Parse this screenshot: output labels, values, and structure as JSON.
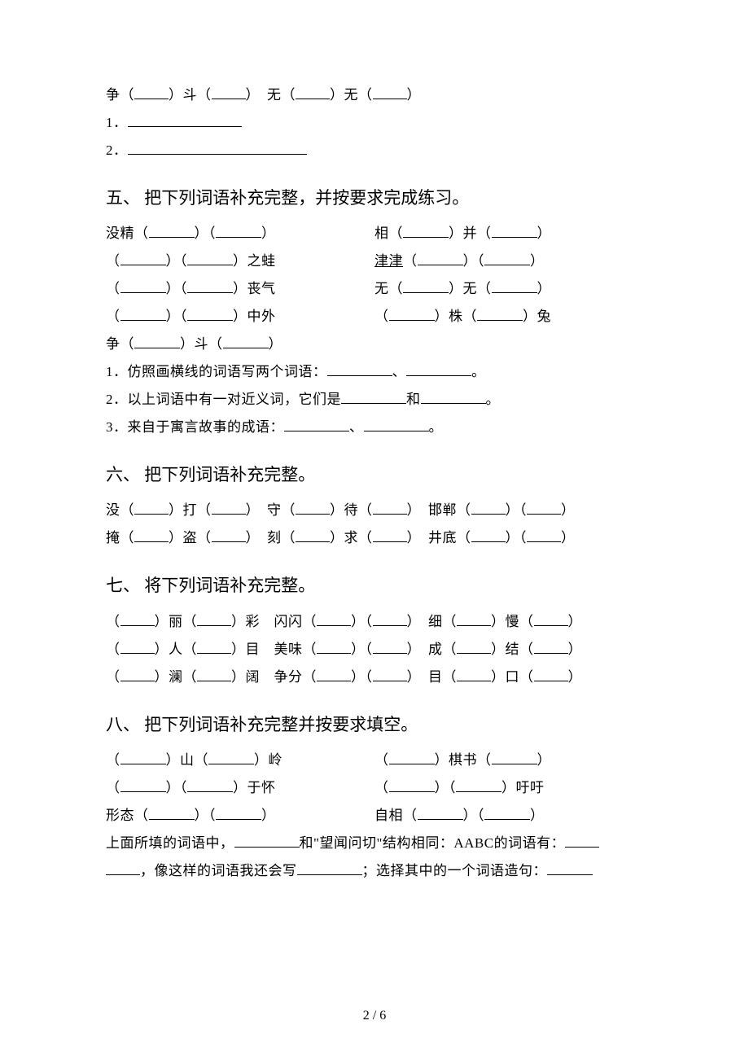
{
  "top_block": {
    "line1_a": "争（",
    "line1_b": "）斗（",
    "line1_c": "）",
    "line1_sep": "　",
    "line1_d": "无（",
    "line1_e": "）无（",
    "line1_f": "）",
    "l1": "1．",
    "l2": "2．"
  },
  "s5": {
    "title": "五、 把下列词语补充完整，并按要求完成练习。",
    "r1a": "没精（",
    "r1b": "）（",
    "r1c": "）",
    "r1d": "相（",
    "r1e": "）并（",
    "r1f": "）",
    "r2a": "（",
    "r2b": "）（",
    "r2c": "）之蛙",
    "r2d_u": "津津",
    "r2d2": "（",
    "r2e": "）（",
    "r2f": "）",
    "r3a": "（",
    "r3b": "）（",
    "r3c": "）丧气",
    "r3d": "无（",
    "r3e": "）无（",
    "r3f": "）",
    "r4a": "（",
    "r4b": "）（",
    "r4c": "）中外",
    "r4d": "（",
    "r4e": "）株（",
    "r4f": "）兔",
    "r5a": "争（",
    "r5b": "）斗（",
    "r5c": "）",
    "q1a": "1．仿照画横线的词语写两个词语：",
    "q1b": "、",
    "q1c": "。",
    "q2a": "2．以上词语中有一对近义词，它们是",
    "q2b": "和",
    "q2c": "。",
    "q3a": "3．来自于寓言故事的成语：",
    "q3b": "、",
    "q3c": "。"
  },
  "s6": {
    "title": "六、 把下列词语补充完整。",
    "l1a": "没（",
    "l1b": "）打（",
    "l1c": "）　守（",
    "l1d": "）待（",
    "l1e": "）　邯郸（",
    "l1f": "）（",
    "l1g": "）",
    "l2a": "掩（",
    "l2b": "）盗（",
    "l2c": "）　刻（",
    "l2d": "）求（",
    "l2e": "）　井底（",
    "l2f": "）（",
    "l2g": "）"
  },
  "s7": {
    "title": "七、 将下列词语补充完整。",
    "l1a": "（",
    "l1b": "）丽（",
    "l1c": "）彩　闪闪（",
    "l1d": "）（",
    "l1e": "）　细（",
    "l1f": "）慢（",
    "l1g": "）",
    "l2a": "（",
    "l2b": "）人（",
    "l2c": "）目　美味（",
    "l2d": "）（",
    "l2e": "）　成（",
    "l2f": "）结（",
    "l2g": "）",
    "l3a": "（",
    "l3b": "）澜（",
    "l3c": "）阔　争分（",
    "l3d": "）（",
    "l3e": "）　目（",
    "l3f": "）口（",
    "l3g": "）"
  },
  "s8": {
    "title": "八、 把下列词语补充完整并按要求填空。",
    "r1a": "（",
    "r1b": "）山（",
    "r1c": "）岭",
    "r1d": "（",
    "r1e": "）棋书（",
    "r1f": "）",
    "r2a": "（",
    "r2b": "）（",
    "r2c": "）于怀",
    "r2d": "（",
    "r2e": "）（",
    "r2f": "）吁吁",
    "r3a": "形态（",
    "r3b": "）（",
    "r3c": "）",
    "r3d": "自相（",
    "r3e": "）（",
    "r3f": "）",
    "p1a": "上面所填的词语中，",
    "p1b": "和\"望闻问切\"结构相同：AABC的词语有：",
    "p2a": "，像这样的词语我还会写",
    "p2b": "；选择其中的一个词语造句："
  },
  "footer": "2 / 6"
}
